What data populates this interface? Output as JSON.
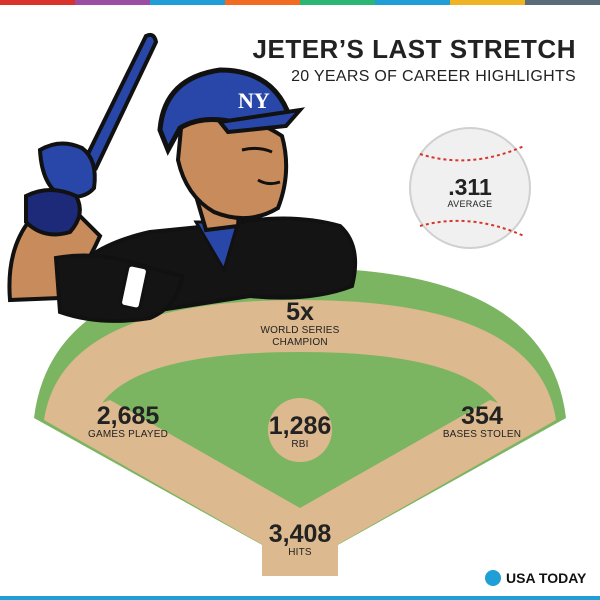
{
  "header": {
    "title": "JETER’S LAST STRETCH",
    "subtitle": "20 YEARS OF CAREER HIGHLIGHTS"
  },
  "colors": {
    "topbar": [
      "#d9342b",
      "#9b4da3",
      "#1f9fd6",
      "#f26b22",
      "#2bb673",
      "#1f9fd6",
      "#f0b323",
      "#5a6b7a"
    ],
    "grass": "#7cb562",
    "dirt": "#dcb98e",
    "navy": "#1d2a7a",
    "accent": "#1f9fd6"
  },
  "average": {
    "value": ".311",
    "label": "AVERAGE"
  },
  "stats": {
    "world_series": {
      "value": "5x",
      "label_line1": "WORLD SERIES",
      "label_line2": "CHAMPION"
    },
    "games_played": {
      "value": "2,685",
      "label": "GAMES PLAYED"
    },
    "rbi": {
      "value": "1,286",
      "label": "RBI"
    },
    "bases_stolen": {
      "value": "354",
      "label": "BASES STOLEN"
    },
    "hits": {
      "value": "3,408",
      "label": "HITS"
    }
  },
  "logo": {
    "text": "USA TODAY"
  },
  "icons": {
    "player": "batter-illustration-icon",
    "ball": "baseball-icon",
    "field": "baseball-diamond-icon"
  }
}
